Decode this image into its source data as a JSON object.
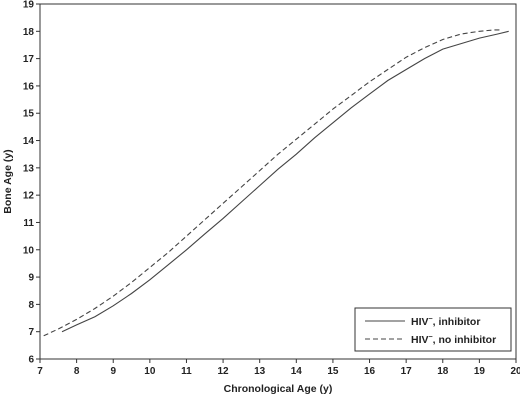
{
  "chart_data": {
    "type": "line",
    "title": "",
    "xlabel": "Chronological Age (y)",
    "ylabel": "Bone Age (y)",
    "xlim": [
      7,
      20
    ],
    "ylim": [
      6,
      19
    ],
    "xticks": [
      7,
      8,
      9,
      10,
      11,
      12,
      13,
      14,
      15,
      16,
      17,
      18,
      19,
      20
    ],
    "yticks": [
      6,
      7,
      8,
      9,
      10,
      11,
      12,
      13,
      14,
      15,
      16,
      17,
      18,
      19
    ],
    "grid": false,
    "legend_position": "bottom-right",
    "series": [
      {
        "name": "HIV⁻, inhibitor",
        "name_base": "HIV",
        "name_sup": "−",
        "name_rest": ", inhibitor",
        "style": "solid",
        "color": "#444444",
        "x": [
          7.6,
          8.0,
          8.5,
          9.0,
          9.5,
          10.0,
          10.5,
          11.0,
          11.5,
          12.0,
          12.5,
          13.0,
          13.5,
          14.0,
          14.5,
          15.0,
          15.5,
          16.0,
          16.5,
          17.0,
          17.5,
          18.0,
          18.5,
          19.0,
          19.5,
          19.8
        ],
        "y": [
          7.0,
          7.25,
          7.55,
          7.95,
          8.4,
          8.9,
          9.45,
          10.0,
          10.58,
          11.15,
          11.75,
          12.35,
          12.95,
          13.5,
          14.1,
          14.65,
          15.2,
          15.7,
          16.2,
          16.6,
          17.0,
          17.35,
          17.55,
          17.75,
          17.9,
          18.0
        ]
      },
      {
        "name": "HIV⁻, no inhibitor",
        "name_base": "HIV",
        "name_sup": "−",
        "name_rest": ", no inhibitor",
        "style": "dashed",
        "color": "#444444",
        "x": [
          7.1,
          7.5,
          8.0,
          8.5,
          9.0,
          9.5,
          10.0,
          10.5,
          11.0,
          11.5,
          12.0,
          12.5,
          13.0,
          13.5,
          14.0,
          14.5,
          15.0,
          15.5,
          16.0,
          16.5,
          17.0,
          17.5,
          18.0,
          18.5,
          19.0,
          19.4,
          19.6
        ],
        "y": [
          6.85,
          7.1,
          7.45,
          7.85,
          8.3,
          8.8,
          9.35,
          9.9,
          10.5,
          11.1,
          11.7,
          12.3,
          12.9,
          13.5,
          14.05,
          14.6,
          15.15,
          15.65,
          16.15,
          16.6,
          17.05,
          17.4,
          17.7,
          17.9,
          18.0,
          18.05,
          18.05
        ]
      }
    ]
  }
}
